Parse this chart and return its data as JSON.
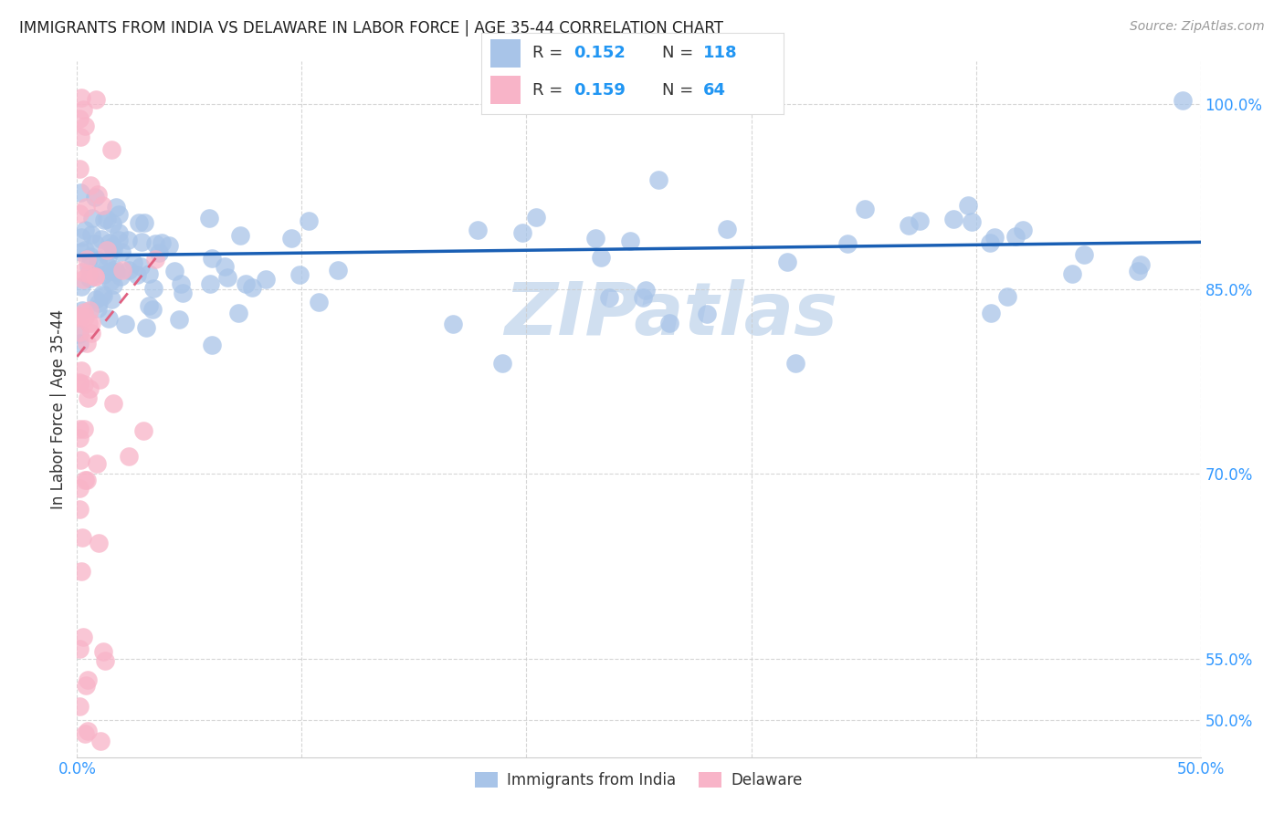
{
  "title": "IMMIGRANTS FROM INDIA VS DELAWARE IN LABOR FORCE | AGE 35-44 CORRELATION CHART",
  "source": "Source: ZipAtlas.com",
  "ylabel": "In Labor Force | Age 35-44",
  "xlim": [
    0.0,
    0.5
  ],
  "ylim": [
    0.47,
    1.035
  ],
  "yticks": [
    0.5,
    0.55,
    0.7,
    0.85,
    1.0
  ],
  "ytick_labels": [
    "50.0%",
    "55.0%",
    "70.0%",
    "85.0%",
    "100.0%"
  ],
  "xticks": [
    0.0,
    0.1,
    0.2,
    0.3,
    0.4,
    0.5
  ],
  "xtick_labels": [
    "0.0%",
    "",
    "",
    "",
    "",
    "50.0%"
  ],
  "india_R": 0.152,
  "india_N": 118,
  "delaware_R": 0.159,
  "delaware_N": 64,
  "india_color": "#a8c4e8",
  "india_edge_color": "#7aaad4",
  "india_line_color": "#1a5fb4",
  "delaware_color": "#f8b4c8",
  "delaware_edge_color": "#e87898",
  "delaware_line_color": "#e06080",
  "watermark": "ZIPatlas",
  "watermark_color": "#d0dff0",
  "title_color": "#222222",
  "title_fontsize": 12,
  "source_color": "#999999",
  "label_color": "#333333",
  "tick_color": "#3399ff",
  "grid_color": "#cccccc",
  "legend_box_color": "#eeeeee",
  "bottom_legend_color": "#333333"
}
